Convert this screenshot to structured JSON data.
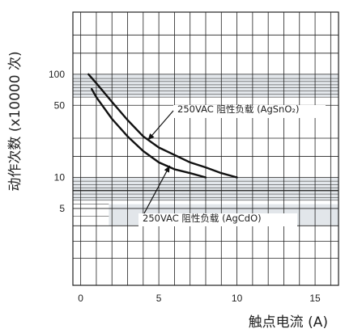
{
  "chart_data": {
    "type": "line",
    "xlabel": "触点电流 (A)",
    "ylabel": "动作次数 (x10000 次)",
    "xlim": [
      -0.5,
      16.5
    ],
    "ylim": [
      0.9,
      400
    ],
    "y_scale": "log",
    "grid": true,
    "x_ticks": [
      {
        "value": 0,
        "label": "0"
      },
      {
        "value": 5,
        "label": "5"
      },
      {
        "value": 10,
        "label": "10"
      },
      {
        "value": 15,
        "label": "15"
      }
    ],
    "y_ticks": [
      {
        "value": 5,
        "label": "5"
      },
      {
        "value": 10,
        "label": "10"
      },
      {
        "value": 50,
        "label": "50"
      },
      {
        "value": 100,
        "label": "100"
      }
    ],
    "series": [
      {
        "name": "250VAC 阻性负载 (AgSnO₂)",
        "x": [
          0.5,
          1,
          2,
          3,
          4,
          5,
          6,
          7,
          8,
          9,
          10
        ],
        "y": [
          100,
          82,
          54,
          36,
          25,
          19.5,
          16.5,
          14,
          12.5,
          11,
          10
        ]
      },
      {
        "name": "250VAC 阻性负载 (AgCdO)",
        "x": [
          0.7,
          1,
          2,
          3,
          4,
          5,
          6,
          7,
          8
        ],
        "y": [
          72,
          60,
          37,
          25,
          18,
          14,
          12,
          11,
          10
        ]
      }
    ],
    "annotations": [
      {
        "text": "250VAC 阻性负载 (AgSnO₂)",
        "series_index": 0,
        "arrow_to": {
          "x": 4.3,
          "y": 23
        }
      },
      {
        "text": "250VAC  阻性负载 (AgCdO)",
        "series_index": 1,
        "arrow_to": {
          "x": 5.7,
          "y": 13
        }
      }
    ],
    "colors": {
      "band_fill": "#e2e6ea",
      "grid_line": "#222222",
      "curve_line": "#111111",
      "background": "#ffffff"
    }
  }
}
